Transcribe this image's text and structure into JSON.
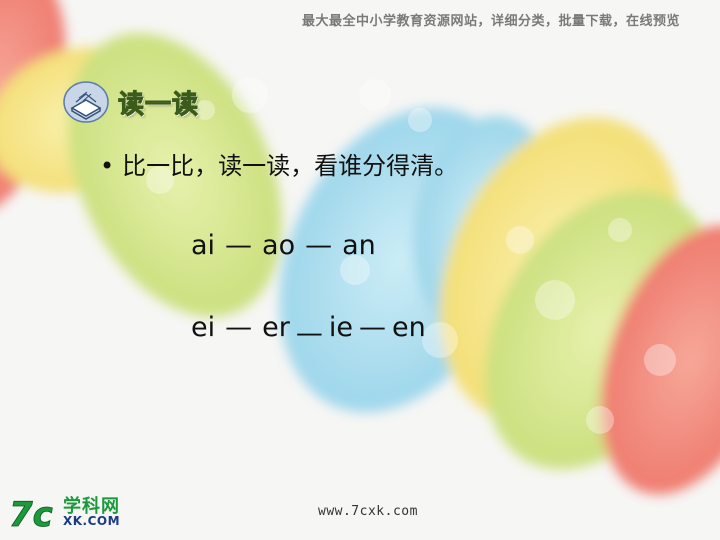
{
  "banner": "最大最全中小学教育资源网站，详细分类，批量下载，在线预览",
  "section": {
    "title": "读一读",
    "icon": "book-icon"
  },
  "instruction": {
    "bullet": "•",
    "text": "比一比，读一读，看谁分得清。"
  },
  "rows": [
    {
      "syllables": [
        "ai",
        "ao",
        "an"
      ]
    },
    {
      "syllables": [
        "ei",
        "er",
        "ie",
        "en"
      ]
    }
  ],
  "dash": "—",
  "logo": {
    "mark": "7c",
    "name": "学科网",
    "domain": "XK.COM"
  },
  "site_url": "www.7cxk.com",
  "colors": {
    "title_fill": "#a2b43a",
    "title_outline": "#3b5b1a",
    "bubble_red": "#f07a6a",
    "bubble_yellow": "#f4e27a",
    "bubble_green": "#cfe37e",
    "bubble_blue": "#9fd9ee",
    "logo_green": "#1a9a3a"
  }
}
